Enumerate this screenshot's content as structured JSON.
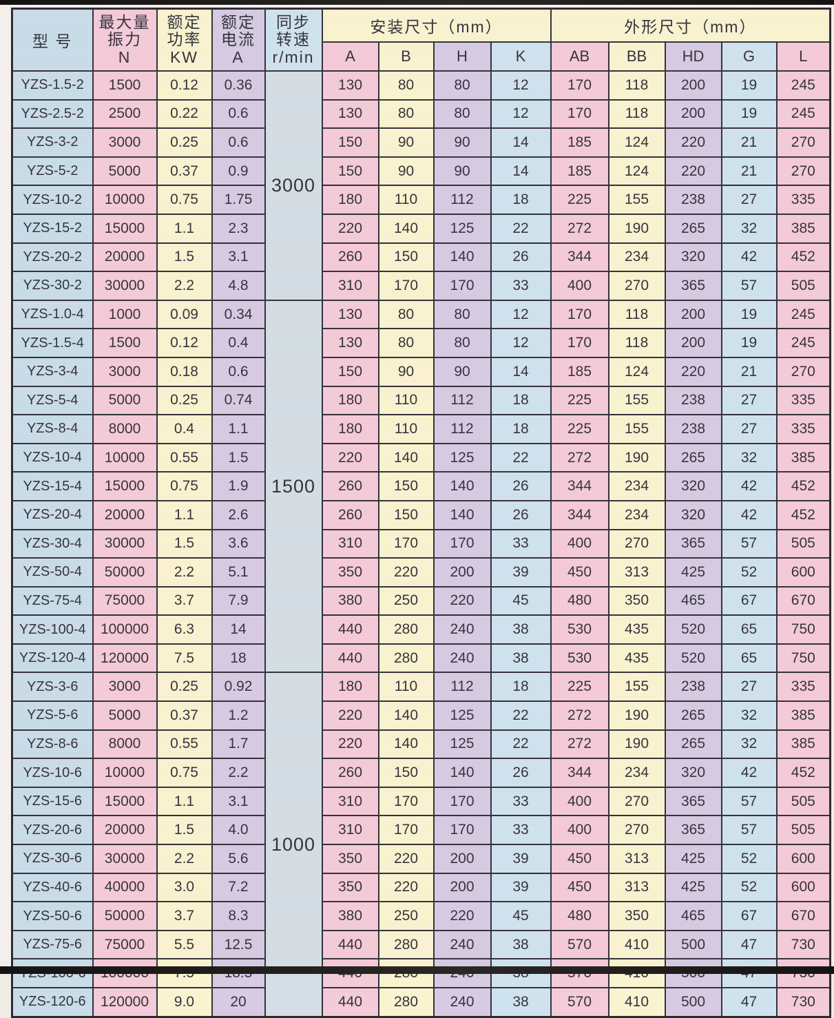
{
  "header": {
    "model": "型 号",
    "force": "最大量\n振力\nN",
    "power": "额定\n功率\nKW",
    "current": "额定\n电流\nA",
    "speed": "同步\n转速\nr/min",
    "install": "安装尺寸（mm）",
    "outline": "外形尺寸（mm）",
    "dim_cols": [
      "A",
      "B",
      "H",
      "K",
      "AB",
      "BB",
      "HD",
      "G",
      "L"
    ]
  },
  "colors": {
    "pink": "#f4cbd9",
    "cream": "#f9f3d0",
    "lavender": "#d6cbe3",
    "light_blue": "#cfe3ee",
    "model_blue": "#c9dde9",
    "speed_blue": "#d4dee4",
    "grid": "#33323a",
    "text": "#35343c"
  },
  "groups": [
    {
      "speed": "3000",
      "rows": [
        {
          "model": "YZS-1.5-2",
          "force": "1500",
          "power": "0.12",
          "current": "0.36",
          "dims": [
            "130",
            "80",
            "80",
            "12",
            "170",
            "118",
            "200",
            "19",
            "245"
          ]
        },
        {
          "model": "YZS-2.5-2",
          "force": "2500",
          "power": "0.22",
          "current": "0.6",
          "dims": [
            "130",
            "80",
            "80",
            "12",
            "170",
            "118",
            "200",
            "19",
            "245"
          ]
        },
        {
          "model": "YZS-3-2",
          "force": "3000",
          "power": "0.25",
          "current": "0.6",
          "dims": [
            "150",
            "90",
            "90",
            "14",
            "185",
            "124",
            "220",
            "21",
            "270"
          ]
        },
        {
          "model": "YZS-5-2",
          "force": "5000",
          "power": "0.37",
          "current": "0.9",
          "dims": [
            "150",
            "90",
            "90",
            "14",
            "185",
            "124",
            "220",
            "21",
            "270"
          ]
        },
        {
          "model": "YZS-10-2",
          "force": "10000",
          "power": "0.75",
          "current": "1.75",
          "dims": [
            "180",
            "110",
            "112",
            "18",
            "225",
            "155",
            "238",
            "27",
            "335"
          ]
        },
        {
          "model": "YZS-15-2",
          "force": "15000",
          "power": "1.1",
          "current": "2.3",
          "dims": [
            "220",
            "140",
            "125",
            "22",
            "272",
            "190",
            "265",
            "32",
            "385"
          ]
        },
        {
          "model": "YZS-20-2",
          "force": "20000",
          "power": "1.5",
          "current": "3.1",
          "dims": [
            "260",
            "150",
            "140",
            "26",
            "344",
            "234",
            "320",
            "42",
            "452"
          ]
        },
        {
          "model": "YZS-30-2",
          "force": "30000",
          "power": "2.2",
          "current": "4.8",
          "dims": [
            "310",
            "170",
            "170",
            "33",
            "400",
            "270",
            "365",
            "57",
            "505"
          ]
        }
      ]
    },
    {
      "speed": "1500",
      "rows": [
        {
          "model": "YZS-1.0-4",
          "force": "1000",
          "power": "0.09",
          "current": "0.34",
          "dims": [
            "130",
            "80",
            "80",
            "12",
            "170",
            "118",
            "200",
            "19",
            "245"
          ]
        },
        {
          "model": "YZS-1.5-4",
          "force": "1500",
          "power": "0.12",
          "current": "0.4",
          "dims": [
            "130",
            "80",
            "80",
            "12",
            "170",
            "118",
            "200",
            "19",
            "245"
          ]
        },
        {
          "model": "YZS-3-4",
          "force": "3000",
          "power": "0.18",
          "current": "0.6",
          "dims": [
            "150",
            "90",
            "90",
            "14",
            "185",
            "124",
            "220",
            "21",
            "270"
          ]
        },
        {
          "model": "YZS-5-4",
          "force": "5000",
          "power": "0.25",
          "current": "0.74",
          "dims": [
            "180",
            "110",
            "112",
            "18",
            "225",
            "155",
            "238",
            "27",
            "335"
          ]
        },
        {
          "model": "YZS-8-4",
          "force": "8000",
          "power": "0.4",
          "current": "1.1",
          "dims": [
            "180",
            "110",
            "112",
            "18",
            "225",
            "155",
            "238",
            "27",
            "335"
          ]
        },
        {
          "model": "YZS-10-4",
          "force": "10000",
          "power": "0.55",
          "current": "1.5",
          "dims": [
            "220",
            "140",
            "125",
            "22",
            "272",
            "190",
            "265",
            "32",
            "385"
          ]
        },
        {
          "model": "YZS-15-4",
          "force": "15000",
          "power": "0.75",
          "current": "1.9",
          "dims": [
            "260",
            "150",
            "140",
            "26",
            "344",
            "234",
            "320",
            "42",
            "452"
          ]
        },
        {
          "model": "YZS-20-4",
          "force": "20000",
          "power": "1.1",
          "current": "2.6",
          "dims": [
            "260",
            "150",
            "140",
            "26",
            "344",
            "234",
            "320",
            "42",
            "452"
          ]
        },
        {
          "model": "YZS-30-4",
          "force": "30000",
          "power": "1.5",
          "current": "3.6",
          "dims": [
            "310",
            "170",
            "170",
            "33",
            "400",
            "270",
            "365",
            "57",
            "505"
          ]
        },
        {
          "model": "YZS-50-4",
          "force": "50000",
          "power": "2.2",
          "current": "5.1",
          "dims": [
            "350",
            "220",
            "200",
            "39",
            "450",
            "313",
            "425",
            "52",
            "600"
          ]
        },
        {
          "model": "YZS-75-4",
          "force": "75000",
          "power": "3.7",
          "current": "7.9",
          "dims": [
            "380",
            "250",
            "220",
            "45",
            "480",
            "350",
            "465",
            "67",
            "670"
          ]
        },
        {
          "model": "YZS-100-4",
          "force": "100000",
          "power": "6.3",
          "current": "14",
          "dims": [
            "440",
            "280",
            "240",
            "38",
            "530",
            "435",
            "520",
            "65",
            "750"
          ]
        },
        {
          "model": "YZS-120-4",
          "force": "120000",
          "power": "7.5",
          "current": "18",
          "dims": [
            "440",
            "280",
            "240",
            "38",
            "530",
            "435",
            "520",
            "65",
            "750"
          ]
        }
      ]
    },
    {
      "speed": "1000",
      "rows": [
        {
          "model": "YZS-3-6",
          "force": "3000",
          "power": "0.25",
          "current": "0.92",
          "dims": [
            "180",
            "110",
            "112",
            "18",
            "225",
            "155",
            "238",
            "27",
            "335"
          ]
        },
        {
          "model": "YZS-5-6",
          "force": "5000",
          "power": "0.37",
          "current": "1.2",
          "dims": [
            "220",
            "140",
            "125",
            "22",
            "272",
            "190",
            "265",
            "32",
            "385"
          ]
        },
        {
          "model": "YZS-8-6",
          "force": "8000",
          "power": "0.55",
          "current": "1.7",
          "dims": [
            "220",
            "140",
            "125",
            "22",
            "272",
            "190",
            "265",
            "32",
            "385"
          ]
        },
        {
          "model": "YZS-10-6",
          "force": "10000",
          "power": "0.75",
          "current": "2.2",
          "dims": [
            "260",
            "150",
            "140",
            "26",
            "344",
            "234",
            "320",
            "42",
            "452"
          ]
        },
        {
          "model": "YZS-15-6",
          "force": "15000",
          "power": "1.1",
          "current": "3.1",
          "dims": [
            "310",
            "170",
            "170",
            "33",
            "400",
            "270",
            "365",
            "57",
            "505"
          ]
        },
        {
          "model": "YZS-20-6",
          "force": "20000",
          "power": "1.5",
          "current": "4.0",
          "dims": [
            "310",
            "170",
            "170",
            "33",
            "400",
            "270",
            "365",
            "57",
            "505"
          ]
        },
        {
          "model": "YZS-30-6",
          "force": "30000",
          "power": "2.2",
          "current": "5.6",
          "dims": [
            "350",
            "220",
            "200",
            "39",
            "450",
            "313",
            "425",
            "52",
            "600"
          ]
        },
        {
          "model": "YZS-40-6",
          "force": "40000",
          "power": "3.0",
          "current": "7.2",
          "dims": [
            "350",
            "220",
            "200",
            "39",
            "450",
            "313",
            "425",
            "52",
            "600"
          ]
        },
        {
          "model": "YZS-50-6",
          "force": "50000",
          "power": "3.7",
          "current": "8.3",
          "dims": [
            "380",
            "250",
            "220",
            "45",
            "480",
            "350",
            "465",
            "67",
            "670"
          ]
        },
        {
          "model": "YZS-75-6",
          "force": "75000",
          "power": "5.5",
          "current": "12.5",
          "dims": [
            "440",
            "280",
            "240",
            "38",
            "570",
            "410",
            "500",
            "47",
            "730"
          ]
        },
        {
          "model": "YZS-100-6",
          "force": "100000",
          "power": "7.5",
          "current": "18.5",
          "dims": [
            "440",
            "280",
            "240",
            "38",
            "570",
            "410",
            "500",
            "47",
            "730"
          ]
        },
        {
          "model": "YZS-120-6",
          "force": "120000",
          "power": "9.0",
          "current": "20",
          "dims": [
            "440",
            "280",
            "240",
            "38",
            "570",
            "410",
            "500",
            "47",
            "730"
          ]
        }
      ]
    }
  ]
}
